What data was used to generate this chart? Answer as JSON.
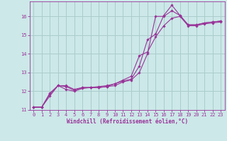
{
  "title": "",
  "xlabel": "Windchill (Refroidissement éolien,°C)",
  "ylabel": "",
  "bg_color": "#cce8e8",
  "grid_color": "#aacccc",
  "line_color": "#993399",
  "spine_color": "#993399",
  "xlim": [
    -0.5,
    23.5
  ],
  "ylim": [
    11.0,
    16.8
  ],
  "yticks": [
    11,
    12,
    13,
    14,
    15,
    16
  ],
  "xticks": [
    0,
    1,
    2,
    3,
    4,
    5,
    6,
    7,
    8,
    9,
    10,
    11,
    12,
    13,
    14,
    15,
    16,
    17,
    18,
    19,
    20,
    21,
    22,
    23
  ],
  "tick_fontsize": 5.0,
  "xlabel_fontsize": 5.5,
  "series": [
    {
      "x": [
        0,
        1,
        2,
        3,
        4,
        5,
        6,
        7,
        8,
        9,
        10,
        11,
        12,
        13,
        14,
        15,
        16,
        17,
        18,
        19,
        20,
        21,
        22,
        23
      ],
      "y": [
        11.15,
        11.15,
        11.9,
        12.3,
        12.3,
        12.1,
        12.2,
        12.2,
        12.2,
        12.25,
        12.3,
        12.5,
        12.6,
        13.0,
        14.0,
        16.0,
        16.0,
        16.3,
        16.05,
        15.55,
        15.55,
        15.65,
        15.7,
        15.75
      ]
    },
    {
      "x": [
        0,
        1,
        2,
        3,
        4,
        5,
        6,
        7,
        8,
        9,
        10,
        11,
        12,
        13,
        14,
        15,
        16,
        17,
        18,
        19,
        20,
        21,
        22,
        23
      ],
      "y": [
        11.15,
        11.15,
        11.85,
        12.3,
        12.25,
        12.05,
        12.2,
        12.2,
        12.25,
        12.3,
        12.4,
        12.55,
        12.65,
        13.35,
        14.75,
        15.05,
        16.05,
        16.6,
        16.05,
        15.55,
        15.55,
        15.65,
        15.7,
        15.75
      ]
    },
    {
      "x": [
        0,
        1,
        2,
        3,
        4,
        5,
        6,
        7,
        8,
        9,
        10,
        11,
        12,
        13,
        14,
        15,
        16,
        17,
        18,
        19,
        20,
        21,
        22,
        23
      ],
      "y": [
        11.15,
        11.15,
        11.75,
        12.3,
        12.1,
        12.0,
        12.15,
        12.2,
        12.2,
        12.25,
        12.4,
        12.6,
        12.8,
        13.9,
        14.1,
        14.9,
        15.5,
        15.9,
        16.0,
        15.5,
        15.5,
        15.6,
        15.65,
        15.7
      ]
    }
  ]
}
